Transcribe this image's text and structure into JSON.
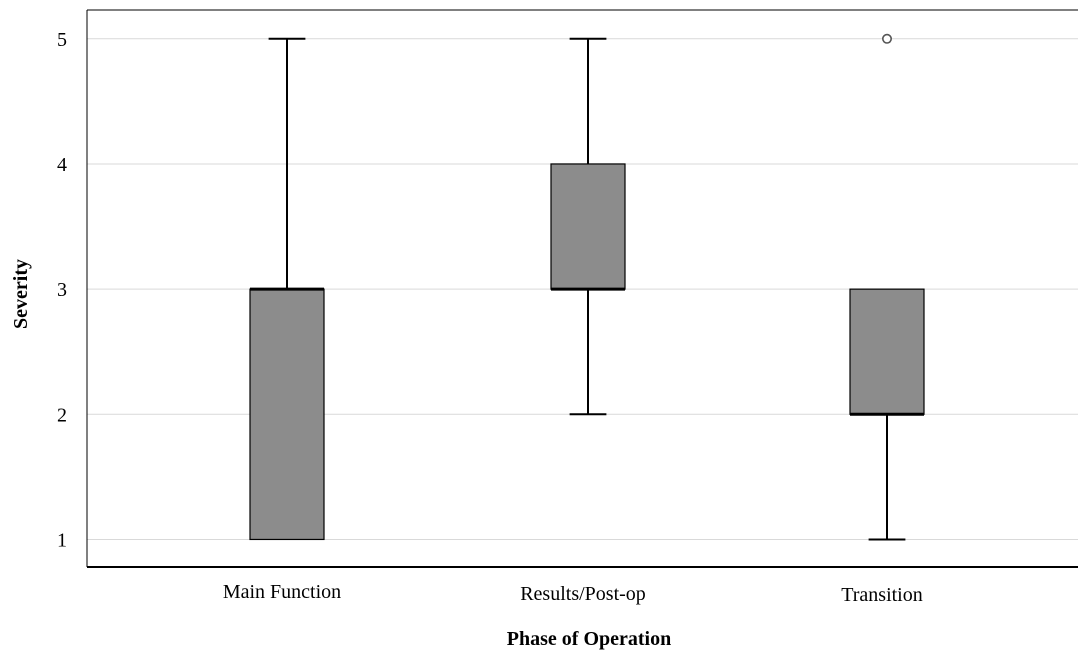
{
  "chart_data": {
    "type": "boxplot",
    "title": "",
    "xlabel": "Phase of Operation",
    "ylabel": "Severity",
    "categories": [
      "Main Function",
      "Results/Post-op",
      "Transition"
    ],
    "y_ticks": [
      "1",
      "2",
      "3",
      "4",
      "5"
    ],
    "ylim": [
      0.78,
      5.23
    ],
    "grid": "horizontal",
    "boxes": [
      {
        "category": "Main Function",
        "whisker_low": 1,
        "q1": 1,
        "median": 3,
        "q3": 3,
        "whisker_high": 5,
        "outliers": []
      },
      {
        "category": "Results/Post-op",
        "whisker_low": 2,
        "q1": 3,
        "median": 3,
        "q3": 4,
        "whisker_high": 5,
        "outliers": []
      },
      {
        "category": "Transition",
        "whisker_low": 1,
        "q1": 2,
        "median": 2,
        "q3": 3,
        "whisker_high": 3,
        "outliers": [
          5
        ]
      }
    ],
    "colors": {
      "box_fill": "#8c8c8c",
      "line": "#000000",
      "grid": "#d9d9d9",
      "outlier": "#555555"
    }
  }
}
